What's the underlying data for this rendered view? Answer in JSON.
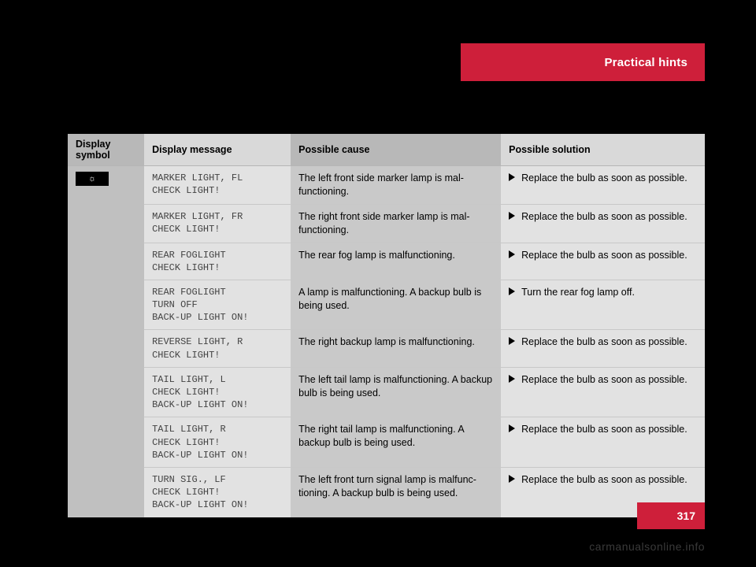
{
  "header": {
    "title": "Practical hints"
  },
  "page": {
    "number": "317"
  },
  "watermark": "carmanualsonline.info",
  "table": {
    "columns": {
      "symbol": "Display symbol",
      "message": "Display message",
      "cause": "Possible cause",
      "solution": "Possible solution"
    },
    "symbol_glyph": "☼",
    "rows": [
      {
        "message": "MARKER LIGHT, FL\nCHECK LIGHT!",
        "cause": "The left front side marker lamp is mal­functioning.",
        "solution": "Replace the bulb as soon as possible."
      },
      {
        "message": "MARKER LIGHT, FR\nCHECK LIGHT!",
        "cause": "The right front side marker lamp is mal­functioning.",
        "solution": "Replace the bulb as soon as possible."
      },
      {
        "message": "REAR FOGLIGHT\nCHECK LIGHT!",
        "cause": "The rear fog lamp is malfunctioning.",
        "solution": "Replace the bulb as soon as possible."
      },
      {
        "message": "REAR FOGLIGHT\nTURN OFF\nBACK-UP LIGHT ON!",
        "cause": "A lamp is malfunctioning. A backup bulb is being used.",
        "solution": "Turn the rear fog lamp off."
      },
      {
        "message": "REVERSE LIGHT, R\nCHECK LIGHT!",
        "cause": "The right backup lamp is malfunctioning.",
        "solution": "Replace the bulb as soon as possible."
      },
      {
        "message": "TAIL LIGHT, L\nCHECK LIGHT!\nBACK-UP LIGHT ON!",
        "cause": "The left tail lamp is malfunctioning. A backup bulb is being used.",
        "solution": "Replace the bulb as soon as possible."
      },
      {
        "message": "TAIL LIGHT, R\nCHECK LIGHT!\nBACK-UP LIGHT ON!",
        "cause": "The right tail lamp is malfunctioning. A backup bulb is being used.",
        "solution": "Replace the bulb as soon as possible."
      },
      {
        "message": "TURN SIG., LF\nCHECK LIGHT!\nBACK-UP LIGHT ON!",
        "cause": "The left front turn signal lamp is malfunc­tioning. A backup bulb is being used.",
        "solution": "Replace the bulb as soon as possible."
      }
    ]
  }
}
